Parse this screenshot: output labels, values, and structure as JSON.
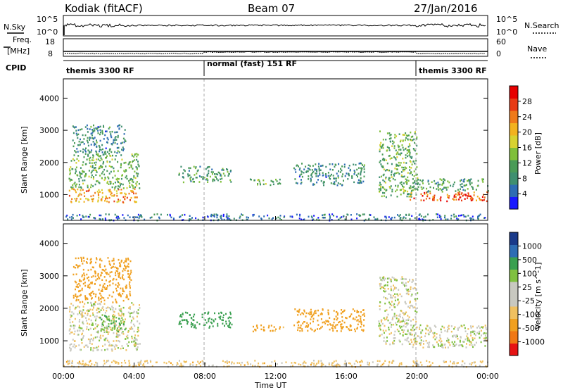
{
  "header": {
    "station": "Kodiak (fitACF)",
    "beam": "Beam 07",
    "date": "27/Jan/2016"
  },
  "strip_labels": {
    "nsky": "N.Sky",
    "nsky_hi": "10^5",
    "nsky_lo": "10^0",
    "nsearch": "N.Search",
    "nsearch_hi": "10^5",
    "nsearch_lo": "10^0",
    "freq_top": "Freq.",
    "freq_unit": "[MHz]",
    "freq_hi": "18",
    "freq_lo": "8",
    "nave": "Nave",
    "nave_hi": "60",
    "nave_lo": "0",
    "cpid": "CPID"
  },
  "modes": [
    "themis 3300 RF",
    "normal (fast) 151 RF",
    "themis 3300 RF"
  ],
  "time_axis": {
    "label": "Time UT",
    "ticks": [
      "00:00",
      "04:00",
      "08:00",
      "12:00",
      "16:00",
      "20:00",
      "00:00"
    ]
  },
  "colors": {
    "power": [
      "#1a1aff",
      "#2e6db4",
      "#3f8f70",
      "#4a9b57",
      "#7fbf3a",
      "#d7d230",
      "#f2b21e",
      "#ef7a1a",
      "#e83a14",
      "#e60000"
    ],
    "velocity": [
      "#e61414",
      "#f07814",
      "#f0a020",
      "#f0c060",
      "#c8c8c0",
      "#c8c8c0",
      "#80c040",
      "#3aa050",
      "#2e6db4",
      "#1a3a8a"
    ]
  },
  "chart_data": [
    {
      "type": "heatmap",
      "title": "Power",
      "xlabel": "Time UT",
      "ylabel": "Slant Range [km]",
      "x_ticks": [
        "00:00",
        "04:00",
        "08:00",
        "12:00",
        "16:00",
        "20:00",
        "00:00"
      ],
      "y_ticks": [
        1000,
        2000,
        3000,
        4000
      ],
      "ylim": [
        200,
        4600
      ],
      "colorbar": {
        "label": "Power [dB]",
        "ticks": [
          4,
          8,
          12,
          16,
          20,
          24,
          28
        ],
        "range": [
          0,
          32
        ]
      },
      "regions": [
        {
          "t": [
            0.3,
            4.3
          ],
          "range": [
            750,
            1200
          ],
          "value": 22
        },
        {
          "t": [
            0.3,
            4.3
          ],
          "range": [
            1200,
            2300
          ],
          "value": 12
        },
        {
          "t": [
            0.5,
            3.5
          ],
          "range": [
            2300,
            3200
          ],
          "value": 8
        },
        {
          "t": [
            6.5,
            9.5
          ],
          "range": [
            1400,
            1900
          ],
          "value": 10
        },
        {
          "t": [
            10.5,
            12.5
          ],
          "range": [
            1300,
            1500
          ],
          "value": 12
        },
        {
          "t": [
            13.0,
            17.0
          ],
          "range": [
            1300,
            2000
          ],
          "value": 8
        },
        {
          "t": [
            17.8,
            20.0
          ],
          "range": [
            900,
            3000
          ],
          "value": 12
        },
        {
          "t": [
            19.5,
            24.0
          ],
          "range": [
            800,
            1100
          ],
          "value": 26
        },
        {
          "t": [
            19.5,
            24.0
          ],
          "range": [
            1100,
            1500
          ],
          "value": 10
        },
        {
          "t": [
            0.0,
            24.0
          ],
          "range": [
            200,
            400
          ],
          "value": 6
        }
      ]
    },
    {
      "type": "heatmap",
      "title": "Velocity",
      "xlabel": "Time UT",
      "ylabel": "Slant Range [km]",
      "x_ticks": [
        "00:00",
        "04:00",
        "08:00",
        "12:00",
        "16:00",
        "20:00",
        "00:00"
      ],
      "y_ticks": [
        1000,
        2000,
        3000,
        4000
      ],
      "ylim": [
        200,
        4600
      ],
      "colorbar": {
        "label": "Velocity [m s^-1]",
        "ticks": [
          1000,
          500,
          100,
          25,
          -25,
          -100,
          -500,
          -1000
        ]
      },
      "regions": [
        {
          "t": [
            0.3,
            4.3
          ],
          "range": [
            700,
            2200
          ],
          "value": 0
        },
        {
          "t": [
            0.5,
            3.8
          ],
          "range": [
            2200,
            3600
          ],
          "value": -300
        },
        {
          "t": [
            2.0,
            3.5
          ],
          "range": [
            1300,
            1800
          ],
          "value": 100
        },
        {
          "t": [
            6.5,
            9.5
          ],
          "range": [
            1400,
            1900
          ],
          "value": 200
        },
        {
          "t": [
            10.5,
            12.5
          ],
          "range": [
            1300,
            1500
          ],
          "value": -150
        },
        {
          "t": [
            13.0,
            17.0
          ],
          "range": [
            1300,
            2000
          ],
          "value": -200
        },
        {
          "t": [
            17.8,
            20.0
          ],
          "range": [
            900,
            3000
          ],
          "value": 0
        },
        {
          "t": [
            19.5,
            24.0
          ],
          "range": [
            800,
            1500
          ],
          "value": 0
        },
        {
          "t": [
            0.0,
            24.0
          ],
          "range": [
            200,
            400
          ],
          "value": -50
        }
      ]
    }
  ]
}
